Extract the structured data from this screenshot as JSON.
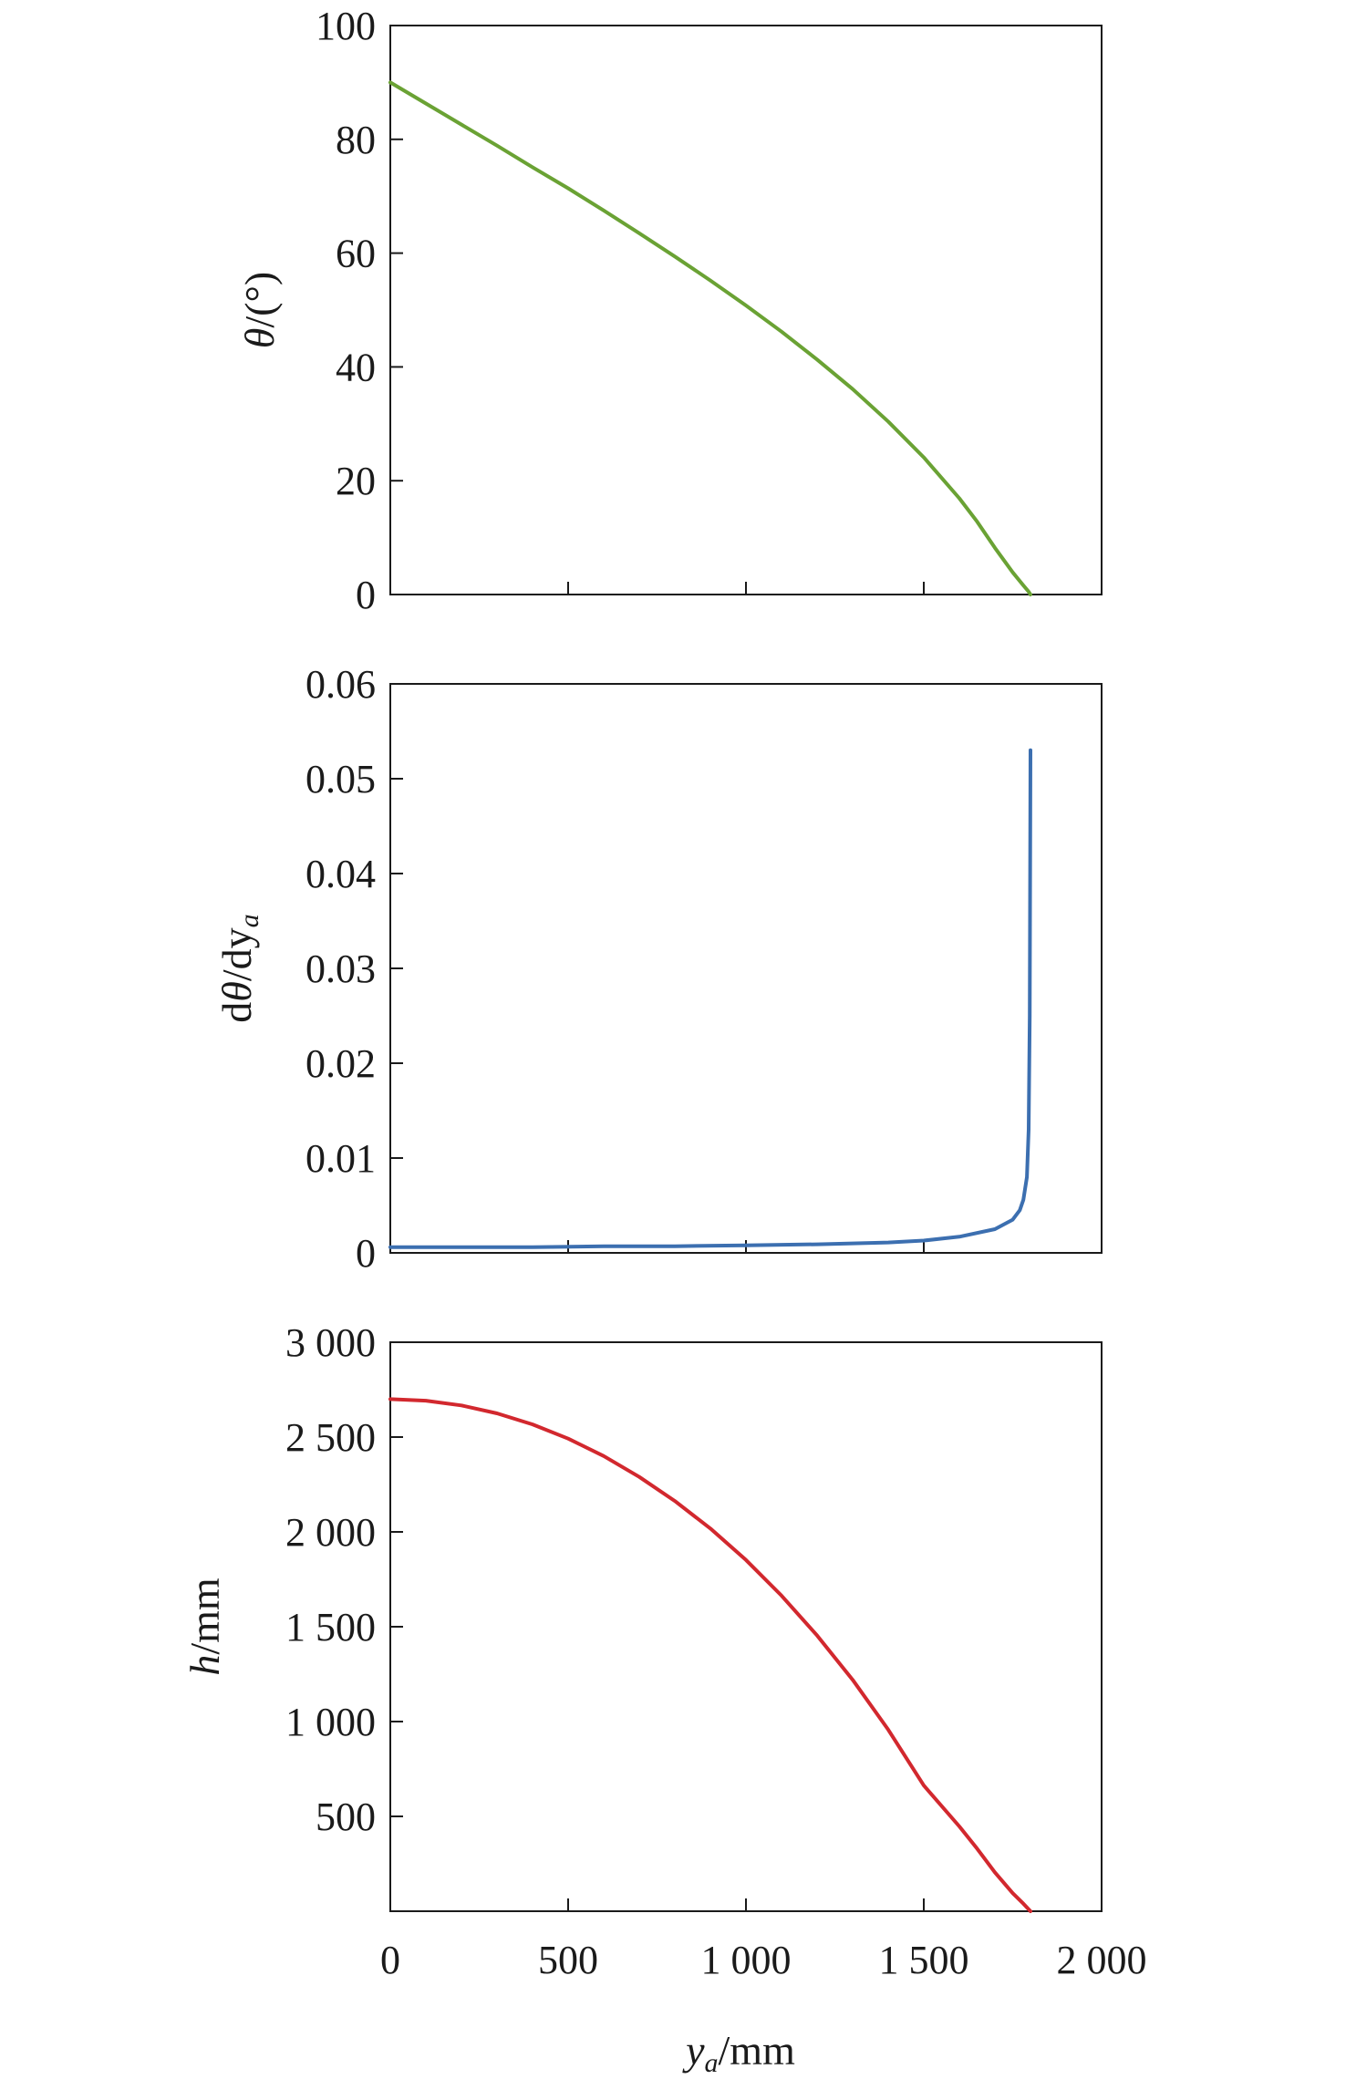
{
  "figure": {
    "xlabel": {
      "main": "y",
      "sub": "a",
      "unit": "/mm"
    }
  },
  "chart_data": [
    {
      "type": "line",
      "ylabel": {
        "prefix": "",
        "italic": "θ",
        "mid": "/(°)",
        "sub": ""
      },
      "xlim": [
        0,
        2000
      ],
      "ylim": [
        0,
        100
      ],
      "yticks": [
        0,
        20,
        40,
        60,
        80,
        100
      ],
      "ytick_labels": [
        "0",
        "20",
        "40",
        "60",
        "80",
        "100"
      ],
      "xticks": [
        500,
        1000,
        1500
      ],
      "show_x_tick_labels": false,
      "grid": false,
      "legend": "none",
      "series": [
        {
          "color": "#6aa234",
          "points": [
            [
              0,
              90
            ],
            [
              100,
              86.3
            ],
            [
              200,
              82.6
            ],
            [
              300,
              78.9
            ],
            [
              400,
              75.1
            ],
            [
              500,
              71.4
            ],
            [
              600,
              67.5
            ],
            [
              700,
              63.5
            ],
            [
              800,
              59.4
            ],
            [
              900,
              55.2
            ],
            [
              1000,
              50.8
            ],
            [
              1100,
              46.2
            ],
            [
              1200,
              41.3
            ],
            [
              1300,
              36.1
            ],
            [
              1400,
              30.4
            ],
            [
              1500,
              24.1
            ],
            [
              1600,
              16.9
            ],
            [
              1650,
              12.8
            ],
            [
              1700,
              8.2
            ],
            [
              1750,
              3.9
            ],
            [
              1780,
              1.6
            ],
            [
              1795,
              0.5
            ],
            [
              1800,
              0
            ]
          ]
        }
      ]
    },
    {
      "type": "line",
      "ylabel": {
        "prefix": "d",
        "italic": "θ",
        "mid": "/dy",
        "sub": "a"
      },
      "xlim": [
        0,
        2000
      ],
      "ylim": [
        0,
        0.06
      ],
      "yticks": [
        0,
        0.01,
        0.02,
        0.03,
        0.04,
        0.05,
        0.06
      ],
      "ytick_labels": [
        "0",
        "0.01",
        "0.02",
        "0.03",
        "0.04",
        "0.05",
        "0.06"
      ],
      "xticks": [
        500,
        1000,
        1500
      ],
      "show_x_tick_labels": false,
      "grid": false,
      "legend": "none",
      "series": [
        {
          "color": "#3c6fb0",
          "points": [
            [
              0,
              0.0006
            ],
            [
              200,
              0.0006
            ],
            [
              400,
              0.0006
            ],
            [
              600,
              0.0007
            ],
            [
              800,
              0.0007
            ],
            [
              1000,
              0.0008
            ],
            [
              1200,
              0.0009
            ],
            [
              1400,
              0.0011
            ],
            [
              1500,
              0.0013
            ],
            [
              1600,
              0.0017
            ],
            [
              1700,
              0.0025
            ],
            [
              1750,
              0.0035
            ],
            [
              1770,
              0.0045
            ],
            [
              1780,
              0.0056
            ],
            [
              1790,
              0.008
            ],
            [
              1795,
              0.013
            ],
            [
              1798,
              0.025
            ],
            [
              1800,
              0.053
            ]
          ]
        }
      ]
    },
    {
      "type": "line",
      "ylabel": {
        "prefix": "",
        "italic": "h",
        "mid": "/mm",
        "sub": ""
      },
      "xlim": [
        0,
        2000
      ],
      "ylim": [
        0,
        3000
      ],
      "yticks": [
        500,
        1000,
        1500,
        2000,
        2500,
        3000
      ],
      "ytick_labels": [
        "500",
        "1 000",
        "1 500",
        "2 000",
        "2 500",
        "3 000"
      ],
      "xticks": [
        0,
        500,
        1000,
        1500,
        2000
      ],
      "xtick_labels": [
        "0",
        "500",
        "1 000",
        "1 500",
        "2 000"
      ],
      "show_x_tick_labels": true,
      "grid": false,
      "legend": "none",
      "series": [
        {
          "color": "#d2282e",
          "points": [
            [
              0,
              2700
            ],
            [
              100,
              2692
            ],
            [
              200,
              2667
            ],
            [
              300,
              2625
            ],
            [
              400,
              2567
            ],
            [
              500,
              2492
            ],
            [
              600,
              2400
            ],
            [
              700,
              2290
            ],
            [
              800,
              2163
            ],
            [
              900,
              2018
            ],
            [
              1000,
              1852
            ],
            [
              1100,
              1664
            ],
            [
              1200,
              1454
            ],
            [
              1300,
              1220
            ],
            [
              1400,
              957
            ],
            [
              1500,
              663
            ],
            [
              1600,
              447
            ],
            [
              1650,
              330
            ],
            [
              1700,
              205
            ],
            [
              1750,
              95
            ],
            [
              1780,
              40
            ],
            [
              1800,
              0
            ]
          ]
        }
      ]
    }
  ]
}
